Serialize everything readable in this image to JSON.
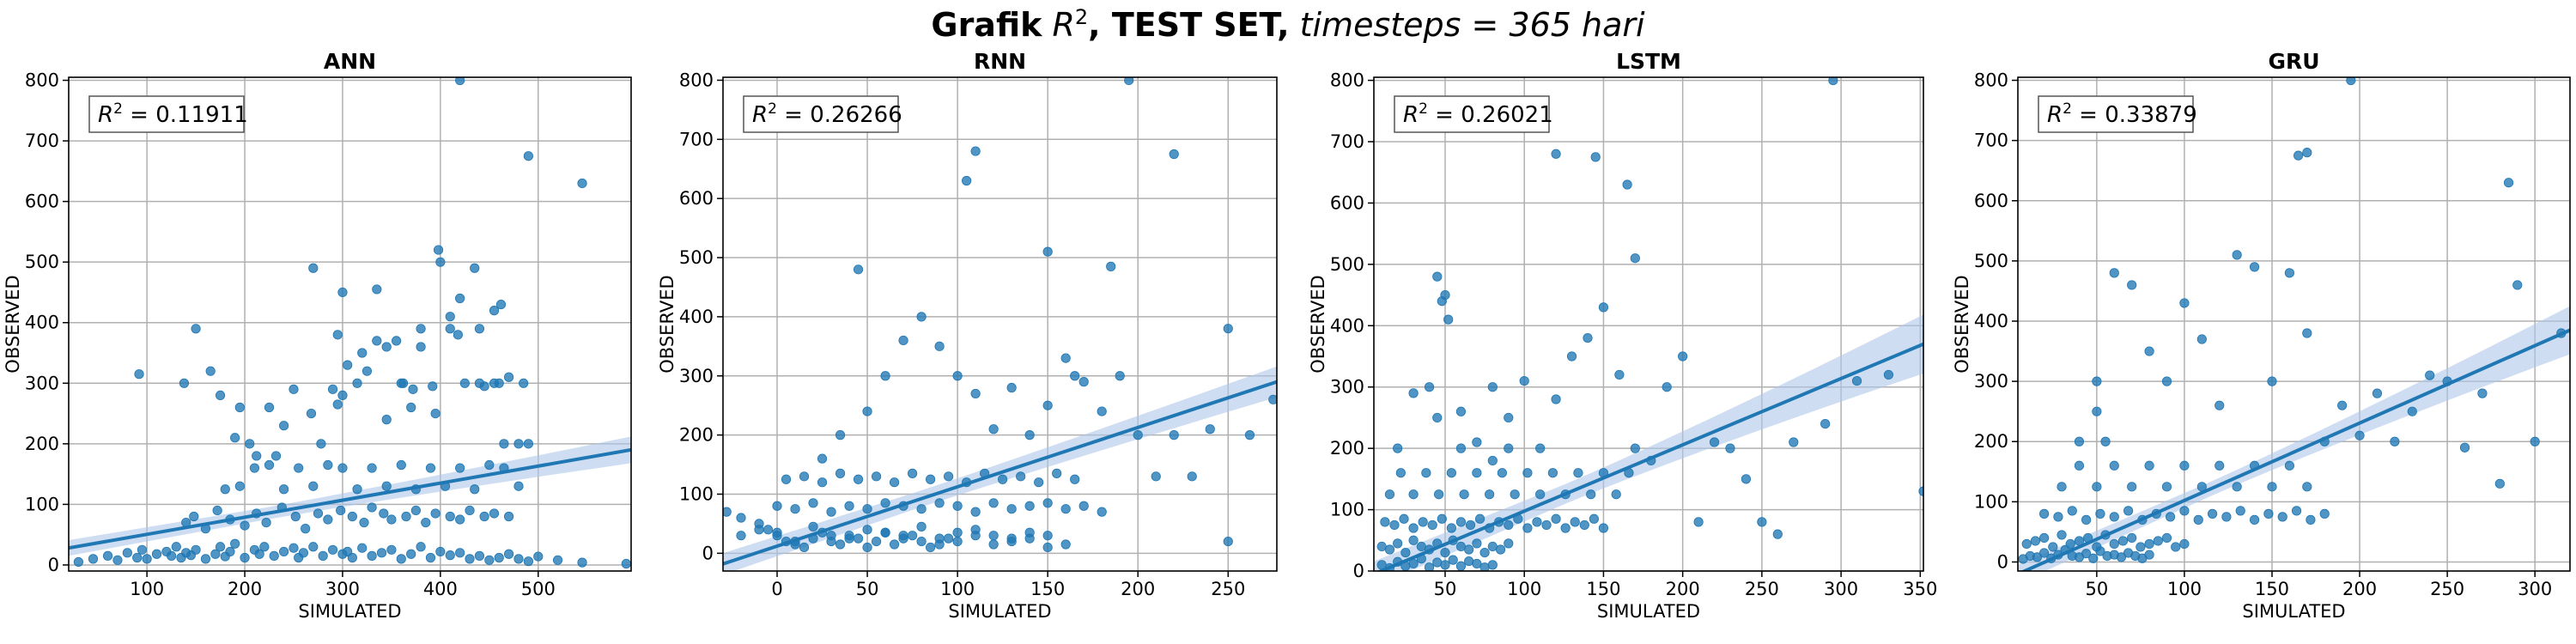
{
  "figure": {
    "title_bold": "Grafik",
    "title_r2": "R",
    "title_r2_sup": "2",
    "title_bold2": ", TEST SET,",
    "title_rest": "timesteps = 365 hari"
  },
  "colors": {
    "point": "#1f77b4",
    "line": "#1f77b4",
    "band": "#aec7e8",
    "grid": "#b0b0b0"
  },
  "chart_data": [
    {
      "type": "scatter",
      "title": "ANN",
      "xlabel": "SIMULATED",
      "ylabel": "OBSERVED",
      "r2_label": "R² = 0.11911",
      "r2_text": "= 0.11911",
      "xlim": [
        20,
        595
      ],
      "ylim": [
        -10,
        805
      ],
      "xticks": [
        100,
        200,
        300,
        400,
        500
      ],
      "yticks": [
        0,
        100,
        200,
        300,
        400,
        500,
        600,
        700,
        800
      ],
      "regression": {
        "x": [
          20,
          595
        ],
        "y": [
          28,
          190
        ],
        "ci_halfwidth": [
          10,
          22
        ]
      },
      "x": [
        30,
        45,
        60,
        70,
        80,
        90,
        95,
        100,
        110,
        120,
        125,
        130,
        135,
        140,
        145,
        150,
        160,
        170,
        175,
        180,
        185,
        190,
        200,
        210,
        215,
        220,
        230,
        240,
        250,
        255,
        260,
        270,
        280,
        290,
        300,
        305,
        310,
        320,
        330,
        340,
        350,
        360,
        370,
        380,
        390,
        400,
        410,
        420,
        430,
        440,
        450,
        460,
        470,
        480,
        490,
        500,
        520,
        545,
        590,
        92,
        138,
        150,
        165,
        175,
        190,
        195,
        205,
        212,
        225,
        232,
        240,
        250,
        268,
        278,
        290,
        295,
        300,
        305,
        315,
        325,
        335,
        345,
        355,
        362,
        372,
        380,
        392,
        398,
        410,
        418,
        425,
        435,
        440,
        455,
        462,
        470,
        485,
        490,
        140,
        148,
        160,
        172,
        185,
        200,
        212,
        222,
        238,
        252,
        262,
        275,
        285,
        298,
        310,
        322,
        330,
        342,
        350,
        365,
        375,
        385,
        395,
        410,
        420,
        430,
        445,
        455,
        470,
        180,
        195,
        210,
        225,
        240,
        255,
        270,
        285,
        300,
        315,
        330,
        345,
        360,
        375,
        390,
        405,
        420,
        435,
        450,
        465,
        480,
        270,
        295,
        300,
        320,
        335,
        345,
        360,
        370,
        380,
        395,
        400,
        410,
        420,
        440,
        445,
        455,
        460,
        465,
        480,
        490,
        545,
        420
      ],
      "y": [
        5,
        10,
        15,
        8,
        20,
        12,
        25,
        10,
        18,
        22,
        15,
        30,
        12,
        20,
        16,
        25,
        10,
        18,
        30,
        14,
        22,
        35,
        12,
        25,
        18,
        30,
        15,
        22,
        28,
        12,
        20,
        30,
        15,
        25,
        18,
        22,
        12,
        28,
        15,
        20,
        25,
        10,
        18,
        30,
        12,
        22,
        16,
        20,
        10,
        15,
        8,
        12,
        18,
        10,
        6,
        14,
        8,
        4,
        2,
        315,
        300,
        390,
        320,
        280,
        210,
        260,
        200,
        180,
        260,
        180,
        230,
        290,
        250,
        200,
        290,
        380,
        450,
        330,
        300,
        320,
        455,
        360,
        370,
        300,
        290,
        390,
        295,
        520,
        390,
        380,
        300,
        490,
        390,
        420,
        430,
        310,
        300,
        200,
        70,
        80,
        60,
        90,
        75,
        65,
        85,
        70,
        95,
        80,
        60,
        85,
        75,
        90,
        80,
        70,
        95,
        85,
        75,
        80,
        90,
        70,
        85,
        80,
        75,
        90,
        80,
        85,
        80,
        125,
        130,
        160,
        165,
        125,
        160,
        130,
        165,
        160,
        125,
        160,
        130,
        165,
        125,
        160,
        130,
        160,
        125,
        165,
        160,
        130,
        490,
        265,
        280,
        350,
        370,
        240,
        300,
        260,
        360,
        250,
        500,
        410,
        440,
        300,
        295,
        300,
        300,
        200,
        200,
        675,
        630,
        800
      ]
    },
    {
      "type": "scatter",
      "title": "RNN",
      "xlabel": "SIMULATED",
      "ylabel": "OBSERVED",
      "r2_label": "R² = 0.26266",
      "r2_text": "= 0.26266",
      "xlim": [
        -30,
        277
      ],
      "ylim": [
        -30,
        805
      ],
      "xticks": [
        0,
        50,
        100,
        150,
        200,
        250
      ],
      "yticks": [
        0,
        100,
        200,
        300,
        400,
        500,
        600,
        700,
        800
      ],
      "regression": {
        "x": [
          -30,
          277
        ],
        "y": [
          -18,
          290
        ],
        "ci_halfwidth": [
          14,
          26
        ]
      },
      "x": [
        -28,
        -20,
        -10,
        -5,
        0,
        5,
        10,
        15,
        20,
        25,
        30,
        35,
        40,
        45,
        50,
        55,
        60,
        65,
        70,
        75,
        80,
        85,
        90,
        95,
        100,
        110,
        120,
        130,
        140,
        150,
        160,
        0,
        10,
        20,
        30,
        40,
        50,
        60,
        70,
        80,
        90,
        100,
        110,
        120,
        130,
        140,
        150,
        160,
        170,
        180,
        -20,
        -10,
        0,
        10,
        20,
        30,
        40,
        50,
        60,
        70,
        80,
        90,
        100,
        110,
        120,
        130,
        140,
        150,
        5,
        15,
        25,
        35,
        45,
        55,
        65,
        75,
        85,
        95,
        105,
        115,
        125,
        135,
        145,
        155,
        165,
        25,
        35,
        45,
        50,
        60,
        70,
        80,
        90,
        100,
        110,
        120,
        130,
        140,
        150,
        160,
        170,
        180,
        190,
        200,
        210,
        220,
        230,
        240,
        250,
        262,
        275,
        105,
        110,
        150,
        195,
        220,
        250,
        185,
        165
      ],
      "y": [
        70,
        60,
        50,
        40,
        30,
        20,
        15,
        10,
        25,
        35,
        20,
        15,
        30,
        25,
        10,
        20,
        35,
        15,
        25,
        30,
        20,
        10,
        15,
        25,
        20,
        30,
        15,
        20,
        25,
        10,
        15,
        80,
        75,
        85,
        70,
        80,
        75,
        85,
        80,
        75,
        85,
        80,
        70,
        85,
        75,
        80,
        85,
        75,
        80,
        70,
        30,
        40,
        35,
        20,
        45,
        30,
        25,
        40,
        35,
        30,
        45,
        25,
        35,
        40,
        30,
        25,
        35,
        30,
        125,
        130,
        120,
        135,
        125,
        130,
        120,
        135,
        125,
        130,
        120,
        135,
        125,
        130,
        120,
        135,
        125,
        160,
        200,
        480,
        240,
        300,
        360,
        400,
        350,
        300,
        270,
        210,
        280,
        200,
        250,
        330,
        290,
        240,
        300,
        200,
        130,
        200,
        130,
        210,
        380,
        200,
        260,
        630,
        680,
        510,
        800,
        675,
        20,
        485,
        300
      ],
      "x_extra": [],
      "y_extra": []
    },
    {
      "type": "scatter",
      "title": "LSTM",
      "xlabel": "SIMULATED",
      "ylabel": "OBSERVED",
      "r2_label": "R² = 0.26021",
      "r2_text": "= 0.26021",
      "xlim": [
        5,
        352
      ],
      "ylim": [
        0,
        805
      ],
      "xticks": [
        50,
        100,
        150,
        200,
        250,
        300,
        350
      ],
      "yticks": [
        0,
        100,
        200,
        300,
        400,
        500,
        600,
        700,
        800
      ],
      "regression": {
        "x": [
          5,
          352
        ],
        "y": [
          -5,
          370
        ],
        "ci_halfwidth": [
          16,
          48
        ]
      },
      "x": [
        10,
        15,
        20,
        25,
        30,
        35,
        40,
        45,
        50,
        55,
        60,
        65,
        70,
        75,
        80,
        10,
        15,
        20,
        25,
        30,
        35,
        40,
        45,
        50,
        55,
        60,
        65,
        70,
        75,
        80,
        85,
        90,
        12,
        18,
        24,
        30,
        36,
        42,
        48,
        54,
        60,
        66,
        72,
        78,
        84,
        90,
        96,
        102,
        108,
        114,
        120,
        126,
        132,
        138,
        144,
        150,
        15,
        22,
        30,
        38,
        46,
        54,
        62,
        70,
        78,
        86,
        94,
        102,
        110,
        118,
        126,
        134,
        142,
        150,
        158,
        166,
        20,
        30,
        40,
        45,
        50,
        60,
        70,
        80,
        90,
        100,
        110,
        120,
        130,
        140,
        150,
        160,
        170,
        180,
        190,
        200,
        210,
        220,
        230,
        240,
        250,
        260,
        270,
        290,
        310,
        330,
        352,
        45,
        48,
        52,
        120,
        145,
        165,
        170,
        295,
        60,
        80,
        90
      ],
      "y": [
        10,
        5,
        15,
        8,
        12,
        20,
        6,
        14,
        10,
        18,
        8,
        16,
        12,
        6,
        10,
        40,
        35,
        45,
        30,
        50,
        40,
        35,
        45,
        30,
        50,
        40,
        35,
        45,
        30,
        40,
        35,
        45,
        80,
        75,
        85,
        70,
        80,
        75,
        85,
        70,
        80,
        75,
        85,
        70,
        80,
        75,
        85,
        70,
        80,
        75,
        85,
        70,
        80,
        75,
        85,
        70,
        125,
        160,
        125,
        160,
        125,
        160,
        125,
        160,
        125,
        160,
        125,
        160,
        125,
        160,
        125,
        160,
        125,
        160,
        125,
        160,
        200,
        290,
        300,
        250,
        450,
        260,
        210,
        180,
        200,
        310,
        200,
        280,
        350,
        380,
        430,
        320,
        200,
        180,
        300,
        350,
        80,
        210,
        200,
        150,
        80,
        60,
        210,
        240,
        310,
        320,
        130,
        480,
        440,
        410,
        680,
        675,
        630,
        510,
        800,
        200,
        300,
        250
      ]
    },
    {
      "type": "scatter",
      "title": "GRU",
      "xlabel": "SIMULATED",
      "ylabel": "OBSERVED",
      "r2_label": "R² = 0.33879",
      "r2_text": "= 0.33879",
      "xlim": [
        5,
        320
      ],
      "ylim": [
        -15,
        805
      ],
      "xticks": [
        50,
        100,
        150,
        200,
        250,
        300
      ],
      "yticks": [
        0,
        100,
        200,
        300,
        400,
        500,
        600,
        700,
        800
      ],
      "regression": {
        "x": [
          5,
          320
        ],
        "y": [
          -20,
          385
        ],
        "ci_halfwidth": [
          12,
          40
        ]
      },
      "x": [
        8,
        12,
        16,
        20,
        24,
        28,
        32,
        36,
        40,
        44,
        48,
        52,
        56,
        60,
        64,
        68,
        72,
        76,
        80,
        10,
        15,
        20,
        25,
        30,
        35,
        40,
        45,
        50,
        55,
        60,
        65,
        70,
        75,
        80,
        85,
        90,
        95,
        100,
        20,
        28,
        36,
        44,
        52,
        60,
        68,
        76,
        84,
        92,
        100,
        108,
        116,
        124,
        132,
        140,
        148,
        156,
        164,
        172,
        180,
        30,
        40,
        50,
        60,
        70,
        80,
        90,
        100,
        110,
        120,
        130,
        140,
        150,
        160,
        170,
        40,
        50,
        60,
        70,
        80,
        90,
        100,
        110,
        120,
        130,
        140,
        150,
        160,
        170,
        180,
        190,
        200,
        210,
        220,
        230,
        240,
        250,
        260,
        270,
        280,
        290,
        300,
        315,
        165,
        170,
        285,
        195,
        50,
        55
      ],
      "y": [
        5,
        10,
        8,
        15,
        6,
        12,
        20,
        10,
        8,
        14,
        6,
        18,
        10,
        12,
        8,
        15,
        10,
        6,
        12,
        30,
        35,
        40,
        25,
        45,
        30,
        35,
        40,
        25,
        45,
        30,
        35,
        40,
        25,
        30,
        35,
        40,
        25,
        30,
        80,
        75,
        85,
        70,
        80,
        75,
        85,
        70,
        80,
        75,
        85,
        70,
        80,
        75,
        85,
        70,
        80,
        75,
        85,
        70,
        80,
        125,
        160,
        125,
        160,
        125,
        160,
        125,
        160,
        125,
        160,
        125,
        160,
        125,
        160,
        125,
        200,
        300,
        480,
        460,
        350,
        300,
        430,
        370,
        260,
        510,
        490,
        300,
        480,
        380,
        200,
        260,
        210,
        280,
        200,
        250,
        310,
        300,
        190,
        280,
        130,
        460,
        200,
        380,
        675,
        680,
        630,
        800,
        250,
        200
      ]
    }
  ]
}
